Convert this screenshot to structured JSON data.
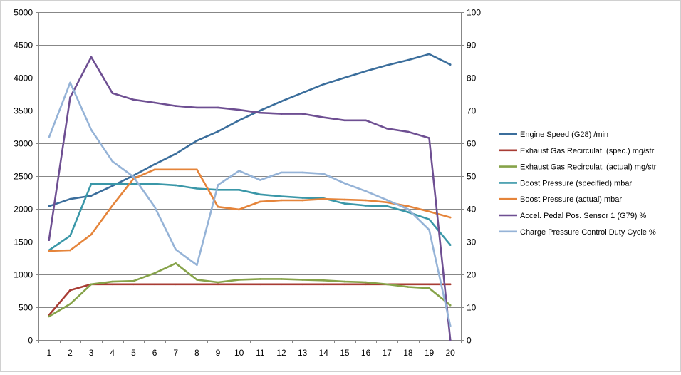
{
  "chart_data": {
    "type": "line",
    "title": "",
    "xlabel": "",
    "ylabel": "",
    "y2label": "",
    "grid": "horizontal",
    "legend_position": "right",
    "x": [
      1,
      2,
      3,
      4,
      5,
      6,
      7,
      8,
      9,
      10,
      11,
      12,
      13,
      14,
      15,
      16,
      17,
      18,
      19,
      20
    ],
    "x_tick_labels": [
      "1",
      "2",
      "3",
      "4",
      "5",
      "6",
      "7",
      "8",
      "9",
      "10",
      "11",
      "12",
      "13",
      "14",
      "15",
      "16",
      "17",
      "18",
      "19",
      "20"
    ],
    "ylim": [
      0,
      5000
    ],
    "y_tick_labels": [
      "0",
      "500",
      "1000",
      "1500",
      "2000",
      "2500",
      "3000",
      "3500",
      "4000",
      "4500",
      "5000"
    ],
    "y2lim": [
      0,
      100
    ],
    "y2_tick_labels": [
      "0",
      "10",
      "20",
      "30",
      "40",
      "50",
      "60",
      "70",
      "80",
      "90",
      "100"
    ],
    "series": [
      {
        "name": "Engine Speed (G28)  /min",
        "axis": "left",
        "color": "#3b6e9c",
        "values": [
          2040,
          2150,
          2200,
          2350,
          2510,
          2680,
          2840,
          3040,
          3180,
          3350,
          3500,
          3640,
          3770,
          3900,
          4000,
          4100,
          4190,
          4270,
          4360,
          4200
        ]
      },
      {
        "name": "Exhaust Gas Recirculat. (spec.)  mg/str",
        "axis": "left",
        "color": "#a83c34",
        "values": [
          380,
          760,
          850,
          850,
          850,
          850,
          850,
          850,
          850,
          850,
          850,
          850,
          850,
          850,
          850,
          850,
          850,
          850,
          850,
          850
        ]
      },
      {
        "name": "Exhaust Gas Recirculat. (actual)  mg/str",
        "axis": "left",
        "color": "#86a349",
        "values": [
          360,
          550,
          850,
          890,
          900,
          1020,
          1170,
          920,
          880,
          920,
          930,
          930,
          920,
          910,
          890,
          880,
          850,
          810,
          790,
          530
        ]
      },
      {
        "name": "Boost Pressure (specified)  mbar",
        "axis": "left",
        "color": "#3a97a8",
        "values": [
          1370,
          1590,
          2380,
          2380,
          2380,
          2380,
          2360,
          2310,
          2290,
          2290,
          2220,
          2190,
          2170,
          2160,
          2080,
          2050,
          2040,
          1950,
          1840,
          1450
        ]
      },
      {
        "name": "Boost Pressure (actual)  mbar",
        "axis": "left",
        "color": "#e5843a",
        "values": [
          1360,
          1370,
          1610,
          2050,
          2460,
          2600,
          2600,
          2600,
          2030,
          1990,
          2110,
          2130,
          2130,
          2150,
          2140,
          2130,
          2100,
          2040,
          1960,
          1870
        ]
      },
      {
        "name": "Accel. Pedal Pos. Sensor 1 (G79)  %",
        "axis": "right",
        "color": "#6e4f92",
        "values": [
          30.5,
          74,
          86.3,
          75.3,
          73.3,
          72.4,
          71.4,
          70.9,
          70.9,
          70.2,
          69.3,
          69,
          69,
          67.9,
          67,
          67,
          64.5,
          63.5,
          61.6,
          0
        ]
      },
      {
        "name": "Charge Pressure Control Duty Cycle  %",
        "axis": "right",
        "color": "#95b3d7",
        "values": [
          61.8,
          78.5,
          64.1,
          54.5,
          49.8,
          40.6,
          27.6,
          22.9,
          47.3,
          51.6,
          48.8,
          51.1,
          51.1,
          50.7,
          47.8,
          45.4,
          42.7,
          39.9,
          33.6,
          4.3
        ]
      }
    ]
  }
}
